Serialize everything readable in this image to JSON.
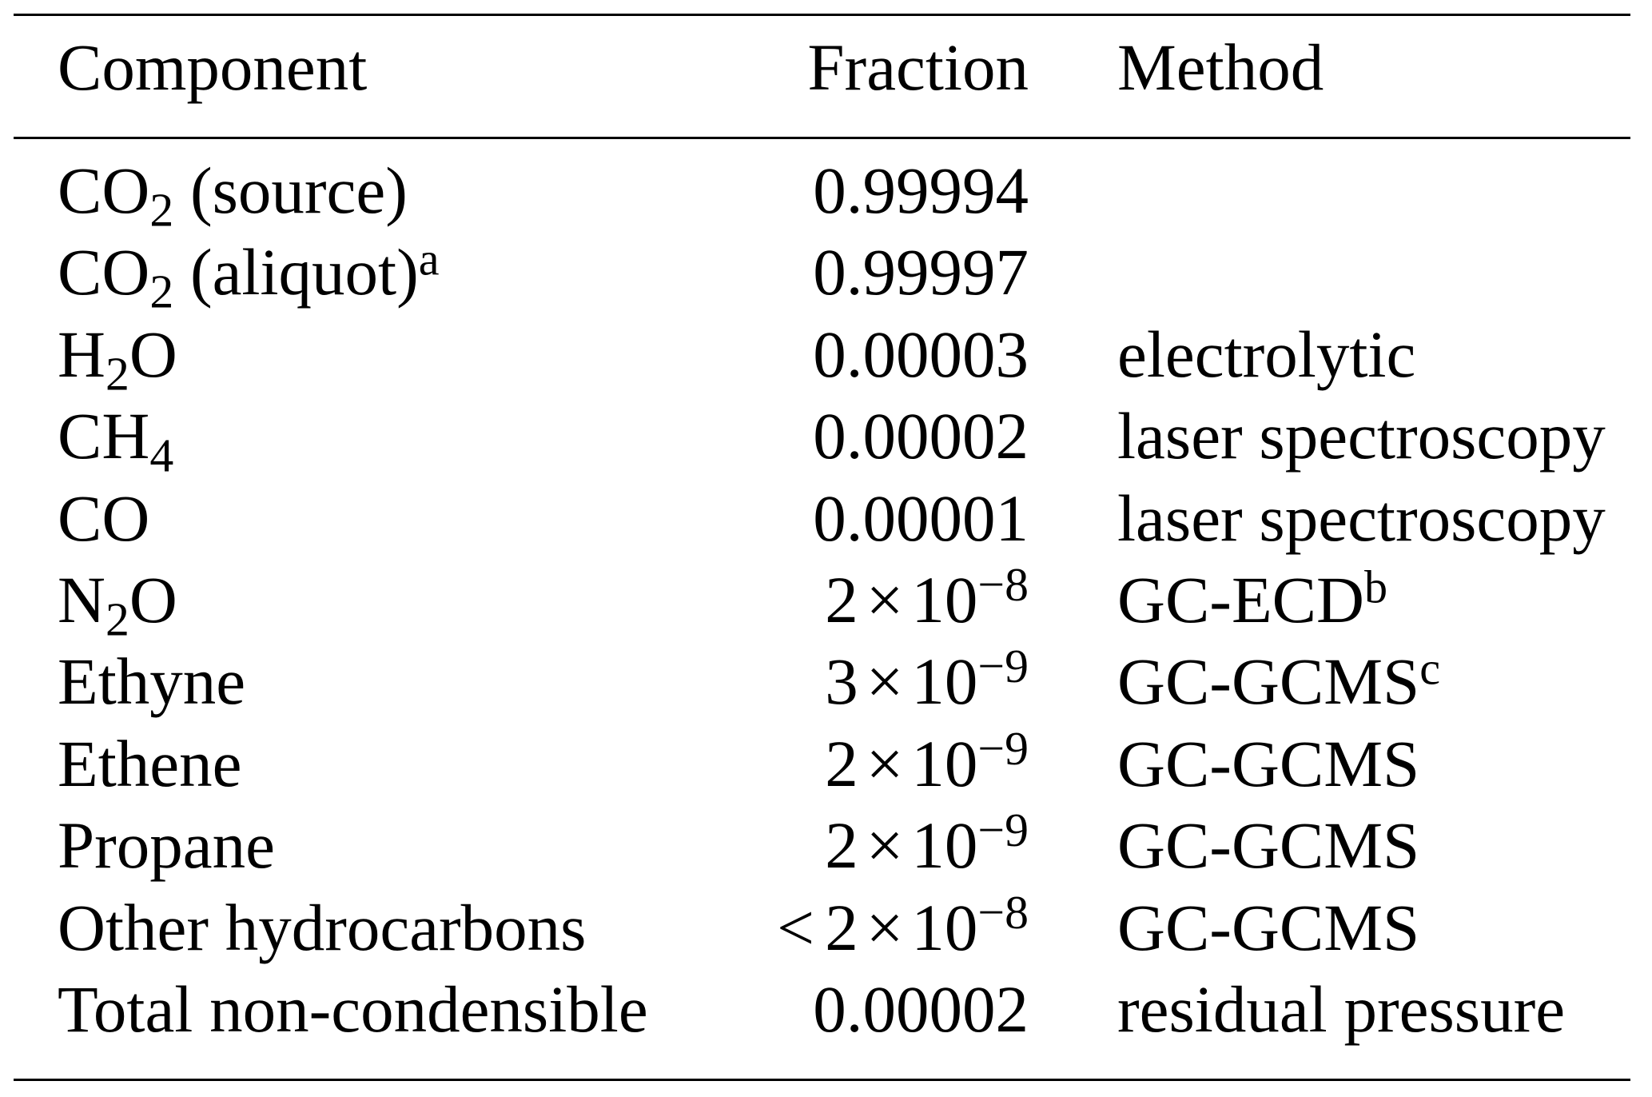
{
  "table": {
    "headers": {
      "component": "Component",
      "fraction": "Fraction",
      "method": "Method"
    },
    "rows": [
      {
        "name": "CO",
        "sub": "2",
        "suffix": " (source)",
        "note": "",
        "fraction": {
          "type": "decimal",
          "text": "0.99994"
        },
        "method": "",
        "method_note": ""
      },
      {
        "name": "CO",
        "sub": "2",
        "suffix": " (aliquot)",
        "note": "a",
        "fraction": {
          "type": "decimal",
          "text": "0.99997"
        },
        "method": "",
        "method_note": ""
      },
      {
        "name": "H",
        "sub": "2",
        "suffix": "O",
        "note": "",
        "fraction": {
          "type": "decimal",
          "text": "0.00003"
        },
        "method": "electrolytic",
        "method_note": ""
      },
      {
        "name": "CH",
        "sub": "4",
        "suffix": "",
        "note": "",
        "fraction": {
          "type": "decimal",
          "text": "0.00002"
        },
        "method": "laser spectroscopy",
        "method_note": ""
      },
      {
        "name": "CO",
        "sub": "",
        "suffix": "",
        "note": "",
        "fraction": {
          "type": "decimal",
          "text": "0.00001"
        },
        "method": "laser spectroscopy",
        "method_note": ""
      },
      {
        "name": "N",
        "sub": "2",
        "suffix": "O",
        "note": "",
        "fraction": {
          "type": "sci",
          "prefix": "",
          "mantissa": "2",
          "times": "×",
          "base": "10",
          "exponent": "−8"
        },
        "method": "GC-ECD",
        "method_note": "b"
      },
      {
        "name": "Ethyne",
        "sub": "",
        "suffix": "",
        "note": "",
        "fraction": {
          "type": "sci",
          "prefix": "",
          "mantissa": "3",
          "times": "×",
          "base": "10",
          "exponent": "−9"
        },
        "method": "GC-GCMS",
        "method_note": "c"
      },
      {
        "name": "Ethene",
        "sub": "",
        "suffix": "",
        "note": "",
        "fraction": {
          "type": "sci",
          "prefix": "",
          "mantissa": "2",
          "times": "×",
          "base": "10",
          "exponent": "−9"
        },
        "method": "GC-GCMS",
        "method_note": ""
      },
      {
        "name": "Propane",
        "sub": "",
        "suffix": "",
        "note": "",
        "fraction": {
          "type": "sci",
          "prefix": "",
          "mantissa": "2",
          "times": "×",
          "base": "10",
          "exponent": "−9"
        },
        "method": "GC-GCMS",
        "method_note": ""
      },
      {
        "name": "Other hydrocarbons",
        "sub": "",
        "suffix": "",
        "note": "",
        "fraction": {
          "type": "sci",
          "prefix": "<",
          "mantissa": "2",
          "times": "×",
          "base": "10",
          "exponent": "−8"
        },
        "method": "GC-GCMS",
        "method_note": ""
      },
      {
        "name": "Total non-condensible",
        "sub": "",
        "suffix": "",
        "note": "",
        "fraction": {
          "type": "decimal",
          "text": "0.00002"
        },
        "method": "residual pressure",
        "method_note": ""
      }
    ]
  }
}
